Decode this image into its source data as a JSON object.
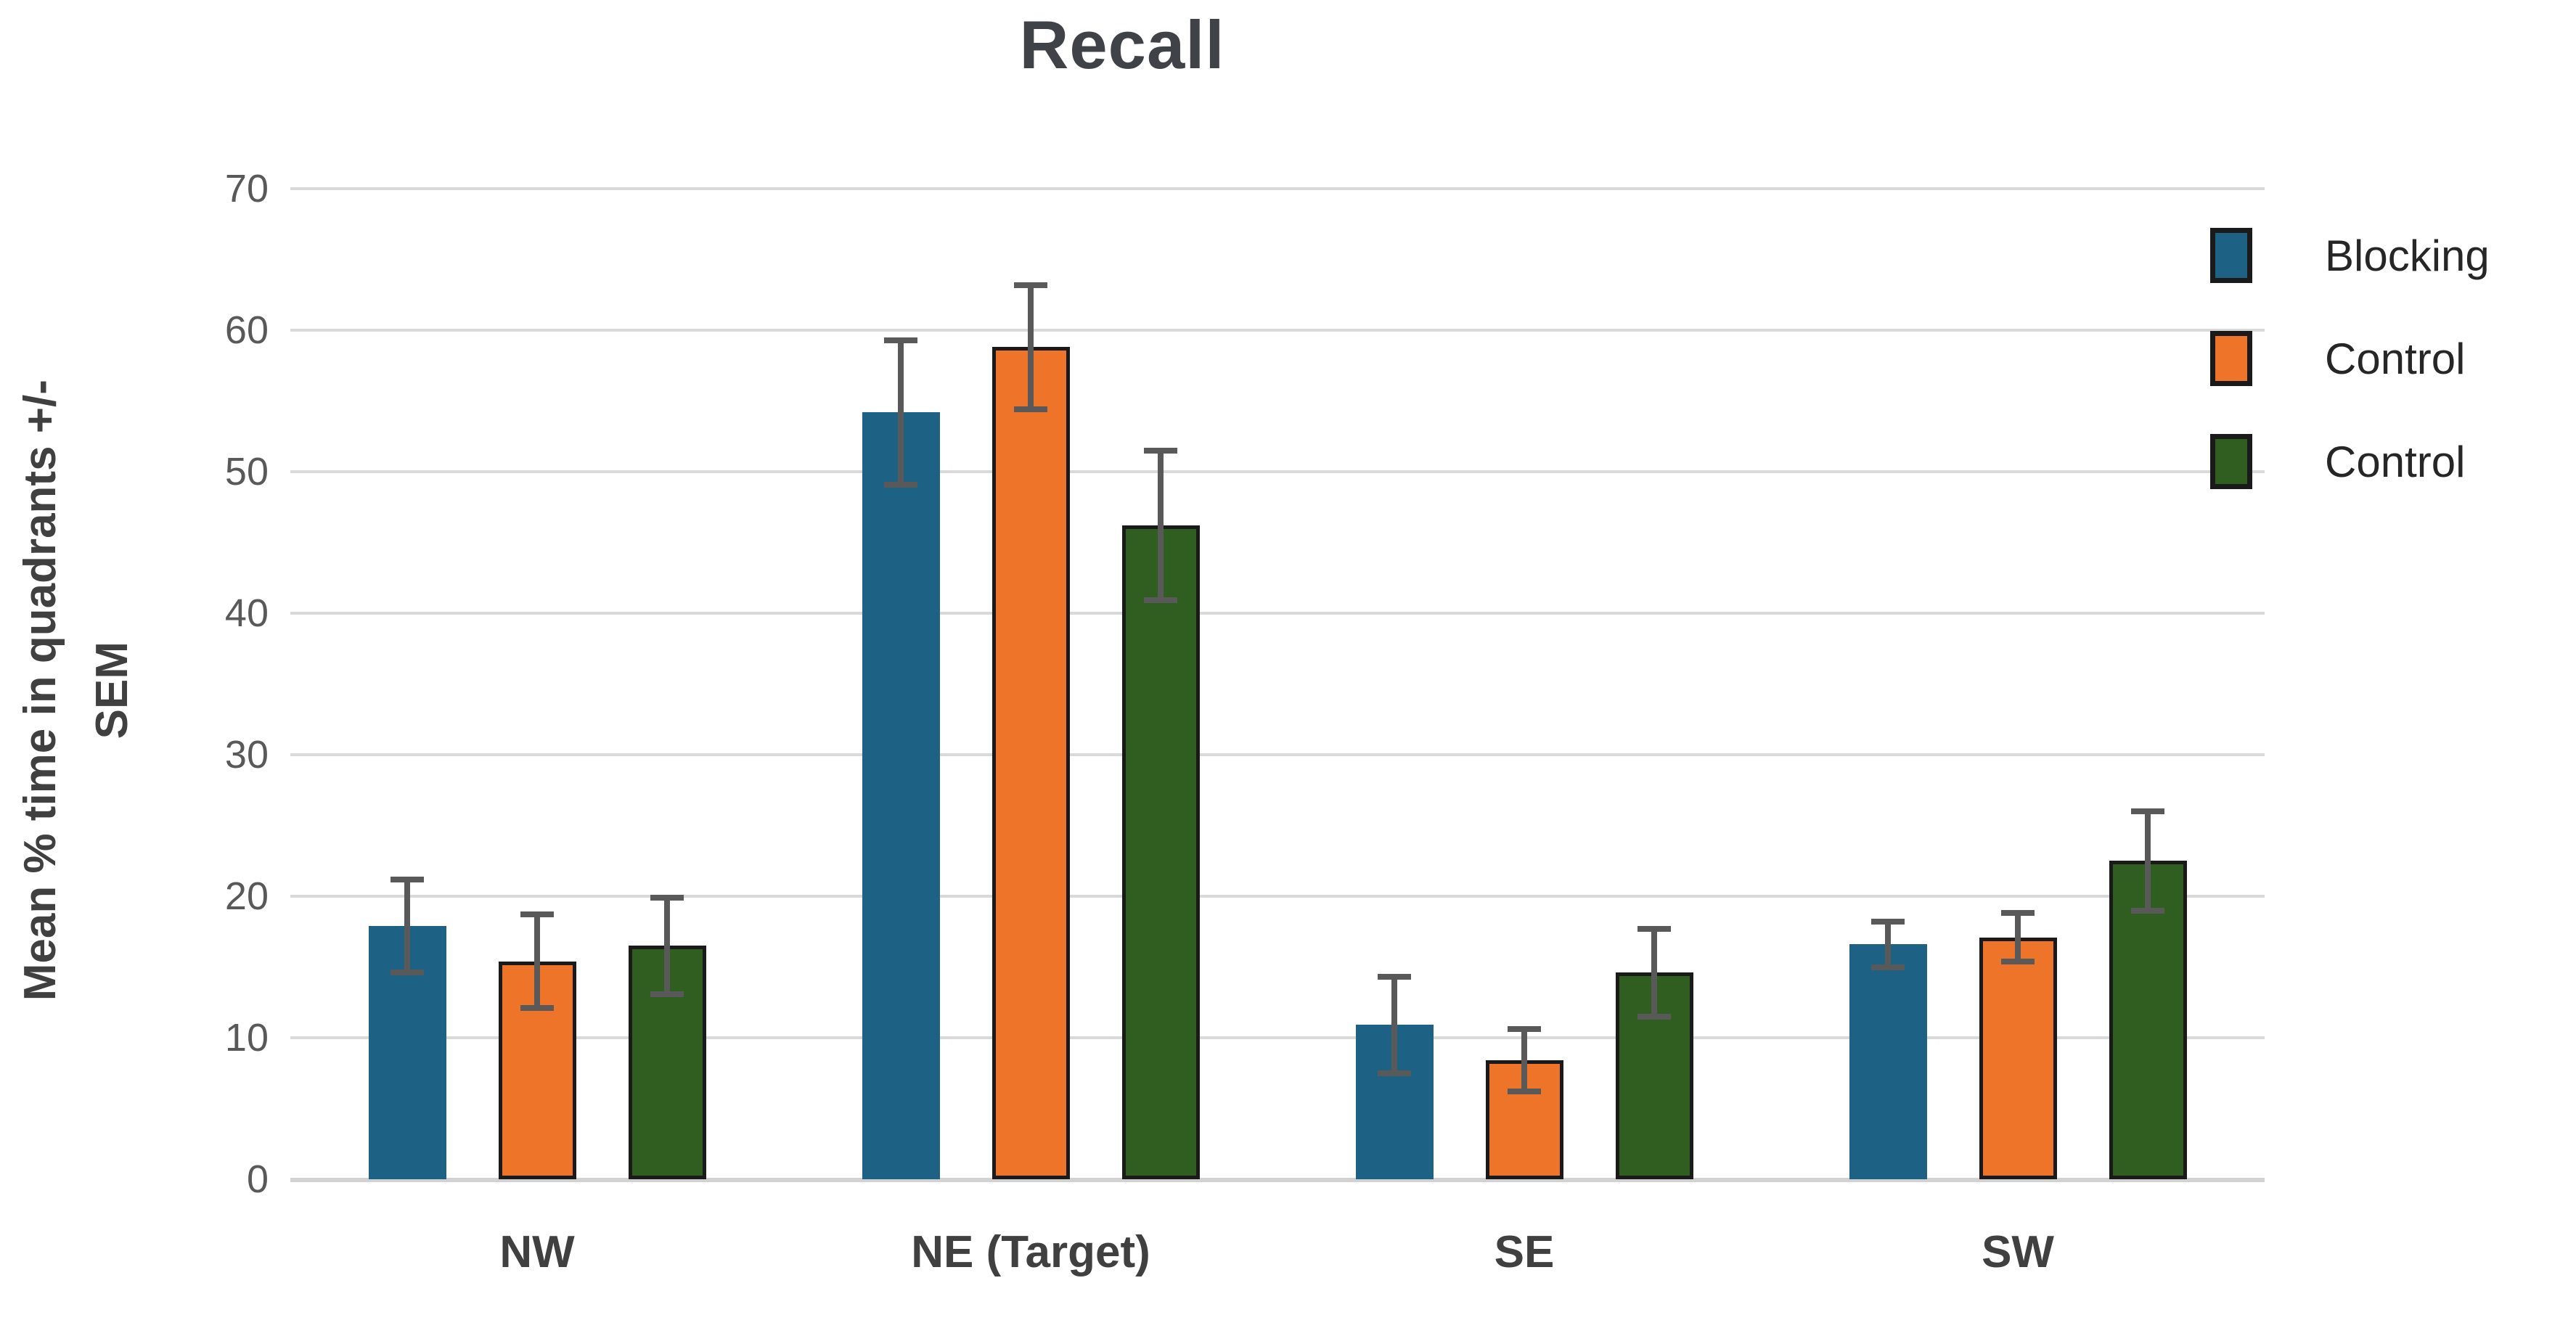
{
  "chart_data": {
    "type": "bar",
    "title": "Recall",
    "categories": [
      "NW",
      "NE (Target)",
      "SE",
      "SW"
    ],
    "series": [
      {
        "name": "Blocking",
        "color": "#1d6284",
        "border_color": "",
        "values": [
          17.9,
          54.2,
          10.9,
          16.6
        ],
        "errors": [
          3.3,
          5.1,
          3.4,
          1.6
        ]
      },
      {
        "name": "Control",
        "color": "#ed7428",
        "border_color": "#1a1a1a",
        "values": [
          15.4,
          58.8,
          8.4,
          17.1
        ],
        "errors": [
          3.3,
          4.4,
          2.2,
          1.7
        ]
      },
      {
        "name": "Control",
        "color": "#2f5e20",
        "border_color": "#1a1a1a",
        "values": [
          16.5,
          46.2,
          14.6,
          22.5
        ],
        "errors": [
          3.4,
          5.3,
          3.1,
          3.5
        ]
      }
    ],
    "ylabel_line1": "Mean % time in quadrants +/-",
    "ylabel_line2": "SEM",
    "xlabel": "",
    "ylim": [
      0,
      70
    ],
    "yticks": [
      0,
      10,
      20,
      30,
      40,
      50,
      60,
      70
    ],
    "grid": true,
    "legend_position": "right",
    "colors": {
      "gridline": "#d9d9d9",
      "baseline": "#d2d2d2",
      "error_bar": "#595959",
      "tick_text": "#595959",
      "label_text": "#404040",
      "title_text": "#3f4247"
    }
  }
}
